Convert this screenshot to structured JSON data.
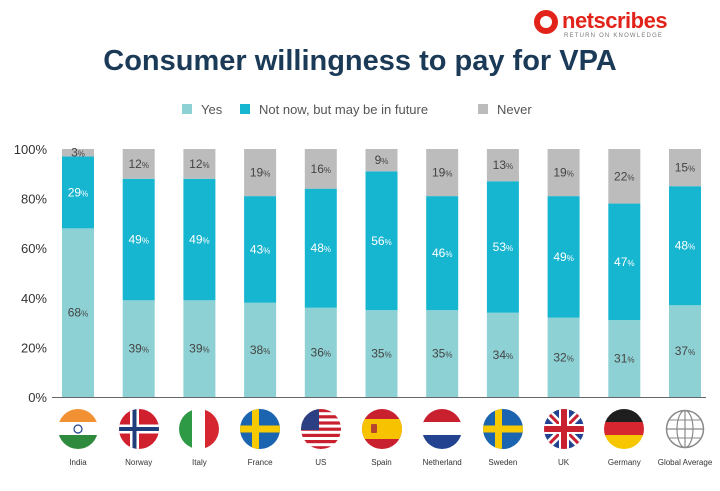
{
  "brand": {
    "name": "netscribes",
    "tagline": "RETURN ON KNOWLEDGE"
  },
  "colors": {
    "yes": "#8ed1d4",
    "maybe": "#16b5d0",
    "never": "#bcbcbc",
    "title": "#1b3a57",
    "brand": "#e2231a"
  },
  "chart_data": {
    "type": "bar",
    "stacked": true,
    "title": "Consumer willingness to pay for VPA",
    "xlabel": "",
    "ylabel": "",
    "ylim": [
      0,
      100
    ],
    "yticks": [
      "0%",
      "20%",
      "40%",
      "60%",
      "80%",
      "100%"
    ],
    "legend_position": "top",
    "grid": false,
    "categories": [
      "India",
      "Norway",
      "Italy",
      "France",
      "US",
      "Spain",
      "Netherland",
      "Sweden",
      "UK",
      "Germany",
      "Global Average"
    ],
    "series": [
      {
        "name": "Yes",
        "values": [
          68,
          39,
          39,
          38,
          36,
          35,
          35,
          34,
          32,
          31,
          37
        ]
      },
      {
        "name": "Not now, but may be in future",
        "values": [
          29,
          49,
          49,
          43,
          48,
          56,
          46,
          53,
          49,
          47,
          48
        ]
      },
      {
        "name": "Never",
        "values": [
          3,
          12,
          12,
          19,
          16,
          9,
          19,
          13,
          19,
          22,
          15
        ]
      }
    ],
    "flag_icons": [
      "india-flag-icon",
      "norway-flag-icon",
      "italy-flag-icon",
      "sweden-flag-icon",
      "us-flag-icon",
      "spain-flag-icon",
      "netherlands-flag-icon",
      "sweden-flag-icon",
      "uk-flag-icon",
      "germany-flag-icon",
      "globe-icon"
    ]
  }
}
